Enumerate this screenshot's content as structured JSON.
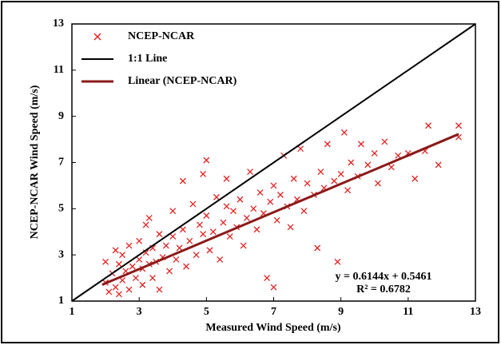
{
  "chart_data": {
    "type": "scatter",
    "xlabel": "Measured Wind Speed (m/s)",
    "ylabel": "NCEP-NCAR Wind Speed (m/s)",
    "xlim": [
      1,
      13
    ],
    "ylim": [
      1,
      13
    ],
    "xticks": [
      1,
      3,
      5,
      7,
      9,
      11,
      13
    ],
    "yticks": [
      1,
      3,
      5,
      7,
      9,
      11,
      13
    ],
    "grid": false,
    "legend": "upper left",
    "annotations": [
      "y = 0.6144x + 0.5461",
      "R² = 0.6782"
    ],
    "series": [
      {
        "name": "NCEP-NCAR",
        "color": "#e32222",
        "mode": "markers",
        "x": [
          2.0,
          2.0,
          2.1,
          2.2,
          2.3,
          2.3,
          2.4,
          2.5,
          2.5,
          2.6,
          2.7,
          2.7,
          2.8,
          2.9,
          3.0,
          3.0,
          3.1,
          3.1,
          3.2,
          3.3,
          3.3,
          3.4,
          3.4,
          3.5,
          3.6,
          3.6,
          3.7,
          3.8,
          3.9,
          4.0,
          4.0,
          4.1,
          4.2,
          4.3,
          4.3,
          4.4,
          4.5,
          4.6,
          4.7,
          4.8,
          4.9,
          5.0,
          5.0,
          5.1,
          5.2,
          5.3,
          5.4,
          5.5,
          5.6,
          5.7,
          5.8,
          5.9,
          6.0,
          6.1,
          6.2,
          6.3,
          6.4,
          6.5,
          6.6,
          6.7,
          6.8,
          6.9,
          7.0,
          7.1,
          7.2,
          7.3,
          7.4,
          7.5,
          7.6,
          7.7,
          7.8,
          7.9,
          8.0,
          8.2,
          8.3,
          8.4,
          8.5,
          8.6,
          8.8,
          8.9,
          9.0,
          9.1,
          9.2,
          9.3,
          9.5,
          9.6,
          9.8,
          10.0,
          10.1,
          10.3,
          10.5,
          10.7,
          11.0,
          11.2,
          11.5,
          11.6,
          11.9,
          12.5,
          12.5,
          4.9,
          3.2,
          2.4,
          7.0,
          5.6
        ],
        "values": [
          1.8,
          2.7,
          1.4,
          2.2,
          3.2,
          1.6,
          2.6,
          1.9,
          3.0,
          2.3,
          1.5,
          3.4,
          2.5,
          2.0,
          2.8,
          3.6,
          1.7,
          2.4,
          3.1,
          2.6,
          4.6,
          2.0,
          3.3,
          2.7,
          3.9,
          1.5,
          2.9,
          3.4,
          2.3,
          3.8,
          4.9,
          2.8,
          3.3,
          6.2,
          4.1,
          2.5,
          3.6,
          5.2,
          3.0,
          4.3,
          3.9,
          7.1,
          4.7,
          3.2,
          4.0,
          5.5,
          2.8,
          4.4,
          6.3,
          3.8,
          4.9,
          4.2,
          5.4,
          3.4,
          4.6,
          6.6,
          5.0,
          4.1,
          5.7,
          4.8,
          2.0,
          5.3,
          6.0,
          4.5,
          5.6,
          7.3,
          5.1,
          4.2,
          6.3,
          5.4,
          7.6,
          4.9,
          6.1,
          5.6,
          3.3,
          6.6,
          5.9,
          7.8,
          6.2,
          2.7,
          6.5,
          8.3,
          5.8,
          7.0,
          6.4,
          7.8,
          6.9,
          7.4,
          6.1,
          7.9,
          6.8,
          7.3,
          7.4,
          6.3,
          7.5,
          8.6,
          6.9,
          8.6,
          8.1,
          6.5,
          4.3,
          1.3,
          1.6,
          5.1
        ]
      },
      {
        "name": "1:1 Line",
        "color": "#000000",
        "mode": "lines",
        "x": [
          1,
          13
        ],
        "values": [
          1,
          13
        ]
      },
      {
        "name": "Linear (NCEP-NCAR)",
        "color": "#8b1a1a",
        "mode": "lines",
        "x": [
          1.9,
          12.5
        ],
        "values": [
          1.71,
          8.23
        ]
      }
    ]
  }
}
